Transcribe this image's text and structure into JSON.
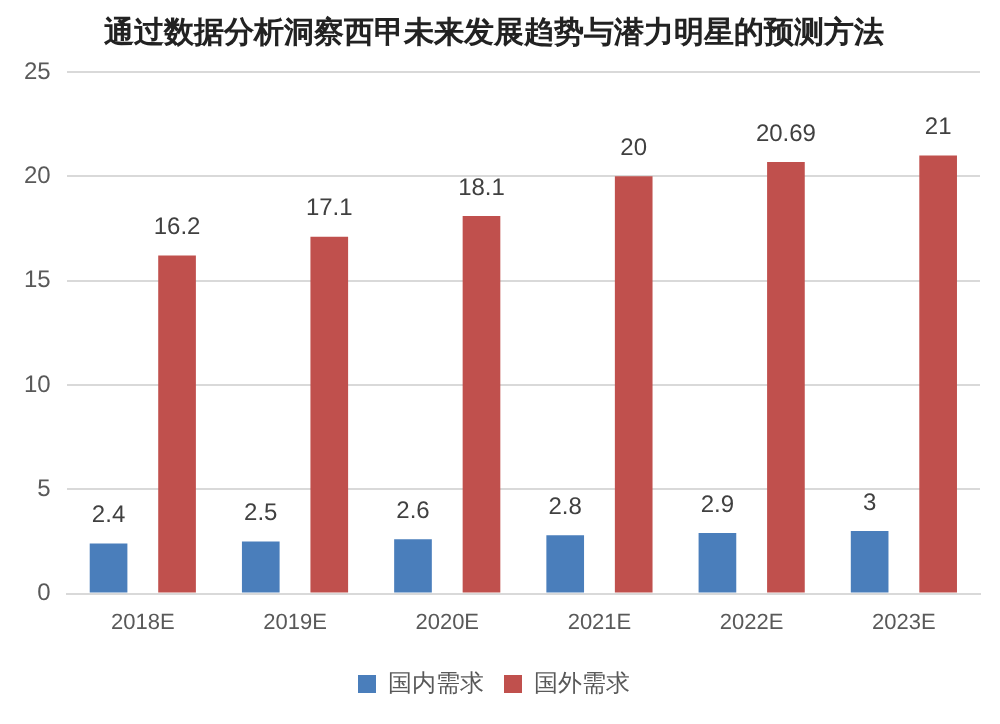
{
  "chart_data": {
    "type": "bar",
    "title": "通过数据分析洞察西甲未来发展趋势与潜力明星的预测方法",
    "categories": [
      "2018E",
      "2019E",
      "2020E",
      "2021E",
      "2022E",
      "2023E"
    ],
    "series": [
      {
        "name": "国内需求",
        "color": "#4a7ebb",
        "values": [
          2.4,
          2.5,
          2.6,
          2.8,
          2.9,
          3
        ]
      },
      {
        "name": "国外需求",
        "color": "#c0504d",
        "values": [
          16.2,
          17.1,
          18.1,
          20,
          20.69,
          21
        ]
      }
    ],
    "ylim": [
      0,
      25
    ],
    "yticks": [
      0,
      5,
      10,
      15,
      20,
      25
    ],
    "grid": "y",
    "legend": "bottom",
    "data_labels": true
  }
}
